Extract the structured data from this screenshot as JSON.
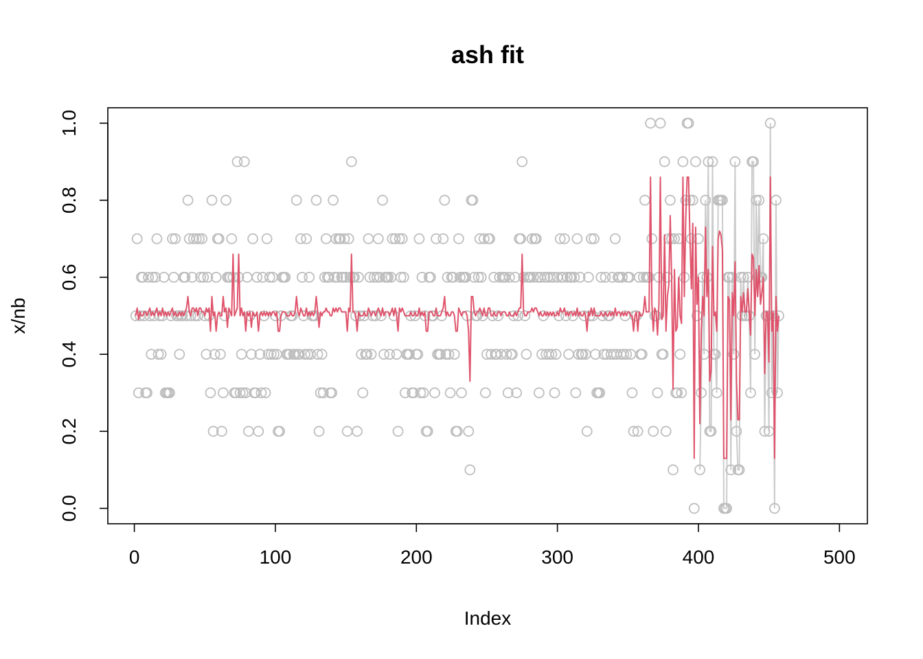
{
  "chart_data": {
    "type": "scatter",
    "title": "ash fit",
    "xlabel": "Index",
    "ylabel": "x/nb",
    "xlim": [
      -18.8,
      519.8
    ],
    "ylim": [
      -0.04,
      1.04
    ],
    "xticks": [
      0,
      100,
      200,
      300,
      400,
      500
    ],
    "yticks": [
      0.0,
      0.2,
      0.4,
      0.6,
      0.8,
      1.0
    ],
    "xtick_labels": [
      "0",
      "100",
      "200",
      "300",
      "400",
      "500"
    ],
    "ytick_labels": [
      "0.0",
      "0.2",
      "0.4",
      "0.6",
      "0.8",
      "1.0"
    ],
    "grid": false,
    "series_colors": {
      "points": "#bebebe",
      "raw_line": "#cccccc",
      "fit_line": "#df536b"
    },
    "point_values": [
      0.5,
      0.7,
      0.3,
      0.5,
      0.6,
      0.6,
      0.5,
      0.3,
      0.3,
      0.6,
      0.5,
      0.4,
      0.6,
      0.5,
      0.6,
      0.7,
      0.4,
      0.5,
      0.4,
      0.5,
      0.6,
      0.3,
      0.3,
      0.3,
      0.3,
      0.5,
      0.7,
      0.6,
      0.7,
      0.5,
      0.5,
      0.4,
      0.5,
      0.5,
      0.6,
      0.6,
      0.5,
      0.8,
      0.7,
      0.5,
      0.6,
      0.7,
      0.5,
      0.7,
      0.5,
      0.7,
      0.6,
      0.7,
      0.6,
      0.5,
      0.4,
      0.6,
      0.5,
      0.3,
      0.8,
      0.2,
      0.4,
      0.6,
      0.7,
      0.7,
      0.4,
      0.2,
      0.3,
      0.5,
      0.8,
      0.6,
      0.6,
      0.6,
      0.7,
      0.6,
      0.3,
      0.3,
      0.9,
      0.6,
      0.3,
      0.4,
      0.3,
      0.9,
      0.3,
      0.6,
      0.2,
      0.5,
      0.4,
      0.7,
      0.3,
      0.3,
      0.6,
      0.2,
      0.4,
      0.3,
      0.6,
      0.5,
      0.3,
      0.7,
      0.4,
      0.6,
      0.4,
      0.6,
      0.4,
      0.5,
      0.4,
      0.2,
      0.2,
      0.5,
      0.6,
      0.6,
      0.6,
      0.4,
      0.4,
      0.4,
      0.5,
      0.5,
      0.4,
      0.4,
      0.8,
      0.4,
      0.4,
      0.7,
      0.6,
      0.5,
      0.4,
      0.7,
      0.4,
      0.6,
      0.4,
      0.5,
      0.5,
      0.5,
      0.8,
      0.4,
      0.2,
      0.3,
      0.4,
      0.3,
      0.6,
      0.7,
      0.6,
      0.6,
      0.3,
      0.3,
      0.8,
      0.6,
      0.7,
      0.6,
      0.7,
      0.7,
      0.6,
      0.6,
      0.7,
      0.6,
      0.2,
      0.7,
      0.6,
      0.9,
      0.6,
      0.6,
      0.5,
      0.2,
      0.6,
      0.5,
      0.4,
      0.3,
      0.5,
      0.4,
      0.4,
      0.7,
      0.6,
      0.4,
      0.5,
      0.6,
      0.5,
      0.6,
      0.7,
      0.6,
      0.5,
      0.8,
      0.4,
      0.6,
      0.6,
      0.6,
      0.4,
      0.6,
      0.7,
      0.5,
      0.7,
      0.4,
      0.2,
      0.7,
      0.6,
      0.7,
      0.6,
      0.3,
      0.4,
      0.4,
      0.4,
      0.5,
      0.3,
      0.3,
      0.5,
      0.4,
      0.4,
      0.7,
      0.3,
      0.6,
      0.3,
      0.5,
      0.2,
      0.2,
      0.6,
      0.6,
      0.5,
      0.5,
      0.3,
      0.7,
      0.4,
      0.4,
      0.4,
      0.5,
      0.7,
      0.8,
      0.4,
      0.6,
      0.4,
      0.3,
      0.6,
      0.6,
      0.4,
      0.2,
      0.2,
      0.7,
      0.6,
      0.3,
      0.6,
      0.6,
      0.6,
      0.5,
      0.2,
      0.1,
      0.8,
      0.8,
      0.6,
      0.5,
      0.5,
      0.6,
      0.7,
      0.6,
      0.5,
      0.7,
      0.3,
      0.4,
      0.7,
      0.7,
      0.4,
      0.5,
      0.6,
      0.4,
      0.4,
      0.5,
      0.6,
      0.4,
      0.6,
      0.6,
      0.6,
      0.4,
      0.3,
      0.6,
      0.4,
      0.4,
      0.5,
      0.6,
      0.3,
      0.5,
      0.7,
      0.7,
      0.9,
      0.6,
      0.5,
      0.4,
      0.6,
      0.6,
      0.6,
      0.7,
      0.6,
      0.7,
      0.7,
      0.6,
      0.3,
      0.6,
      0.4,
      0.5,
      0.6,
      0.4,
      0.6,
      0.4,
      0.6,
      0.4,
      0.6,
      0.3,
      0.4,
      0.6,
      0.5,
      0.7,
      0.6,
      0.6,
      0.7,
      0.5,
      0.6,
      0.4,
      0.6,
      0.6,
      0.5,
      0.6,
      0.3,
      0.7,
      0.4,
      0.6,
      0.4,
      0.4,
      0.5,
      0.4,
      0.2,
      0.6,
      0.5,
      0.7,
      0.5,
      0.7,
      0.4,
      0.3,
      0.3,
      0.3,
      0.6,
      0.5,
      0.4,
      0.6,
      0.4,
      0.5,
      0.5,
      0.4,
      0.6,
      0.4,
      0.7,
      0.4,
      0.6,
      0.6,
      0.4,
      0.6,
      0.4,
      0.5,
      0.4,
      0.6,
      0.6,
      0.4,
      0.3,
      0.2,
      0.5,
      0.5,
      0.2,
      0.6,
      0.4,
      0.4,
      0.6,
      0.8,
      0.6,
      0.6,
      0.6,
      1.0,
      0.7,
      0.2,
      0.5,
      0.5,
      0.3,
      0.6,
      1.0,
      0.4,
      0.4,
      0.9,
      0.2,
      0.6,
      0.7,
      0.8,
      0.7,
      0.1,
      0.7,
      0.3,
      0.3,
      0.7,
      0.4,
      0.3,
      0.9,
      0.6,
      0.8,
      1.0,
      1.0,
      0.8,
      0.7,
      0.8,
      0.0,
      0.9,
      0.5,
      0.7,
      0.1,
      0.3,
      0.6,
      0.4,
      0.8,
      0.6,
      0.9,
      0.2,
      0.2,
      0.9,
      0.4,
      0.4,
      0.3,
      0.8,
      0.8,
      0.8,
      0.8,
      0.0,
      0.0,
      0.0,
      0.6,
      0.6,
      0.1,
      0.6,
      0.4,
      0.9,
      0.2,
      0.1,
      0.1,
      0.6,
      0.5,
      0.6,
      0.5,
      0.5,
      0.6,
      0.5,
      0.3,
      0.9,
      0.9,
      0.4,
      0.8,
      0.6,
      0.8,
      0.6,
      0.6,
      0.7,
      0.2,
      0.5,
      0.5,
      0.2,
      1.0,
      0.3,
      0.5,
      0.0,
      0.8,
      0.3,
      0.5
    ],
    "fit_values": [
      0.5,
      0.52,
      0.49,
      0.51,
      0.5,
      0.5,
      0.51,
      0.51,
      0.5,
      0.51,
      0.52,
      0.5,
      0.51,
      0.5,
      0.51,
      0.52,
      0.5,
      0.51,
      0.5,
      0.52,
      0.5,
      0.51,
      0.5,
      0.51,
      0.5,
      0.51,
      0.52,
      0.5,
      0.51,
      0.5,
      0.5,
      0.51,
      0.5,
      0.51,
      0.5,
      0.51,
      0.52,
      0.55,
      0.51,
      0.5,
      0.52,
      0.52,
      0.51,
      0.52,
      0.5,
      0.52,
      0.52,
      0.51,
      0.51,
      0.5,
      0.52,
      0.51,
      0.52,
      0.46,
      0.55,
      0.5,
      0.51,
      0.46,
      0.5,
      0.51,
      0.5,
      0.5,
      0.55,
      0.51,
      0.52,
      0.47,
      0.52,
      0.51,
      0.5,
      0.66,
      0.5,
      0.51,
      0.52,
      0.66,
      0.5,
      0.52,
      0.5,
      0.51,
      0.46,
      0.51,
      0.5,
      0.51,
      0.47,
      0.51,
      0.5,
      0.5,
      0.51,
      0.46,
      0.5,
      0.51,
      0.5,
      0.51,
      0.5,
      0.51,
      0.5,
      0.51,
      0.5,
      0.51,
      0.51,
      0.5,
      0.51,
      0.46,
      0.46,
      0.5,
      0.51,
      0.51,
      0.51,
      0.5,
      0.5,
      0.5,
      0.51,
      0.5,
      0.5,
      0.51,
      0.55,
      0.51,
      0.5,
      0.52,
      0.51,
      0.5,
      0.5,
      0.52,
      0.5,
      0.51,
      0.5,
      0.51,
      0.5,
      0.51,
      0.55,
      0.51,
      0.47,
      0.51,
      0.5,
      0.51,
      0.51,
      0.52,
      0.51,
      0.51,
      0.5,
      0.5,
      0.52,
      0.51,
      0.52,
      0.51,
      0.52,
      0.52,
      0.51,
      0.51,
      0.51,
      0.51,
      0.46,
      0.52,
      0.51,
      0.66,
      0.51,
      0.51,
      0.5,
      0.46,
      0.51,
      0.5,
      0.5,
      0.5,
      0.51,
      0.5,
      0.5,
      0.52,
      0.51,
      0.5,
      0.51,
      0.51,
      0.5,
      0.51,
      0.52,
      0.51,
      0.5,
      0.52,
      0.5,
      0.51,
      0.51,
      0.51,
      0.5,
      0.51,
      0.52,
      0.5,
      0.52,
      0.5,
      0.46,
      0.52,
      0.51,
      0.52,
      0.51,
      0.5,
      0.5,
      0.5,
      0.5,
      0.51,
      0.5,
      0.5,
      0.51,
      0.5,
      0.5,
      0.52,
      0.5,
      0.51,
      0.5,
      0.51,
      0.46,
      0.46,
      0.51,
      0.51,
      0.51,
      0.5,
      0.5,
      0.52,
      0.5,
      0.5,
      0.5,
      0.51,
      0.52,
      0.55,
      0.5,
      0.51,
      0.5,
      0.5,
      0.51,
      0.51,
      0.5,
      0.46,
      0.46,
      0.52,
      0.51,
      0.5,
      0.51,
      0.51,
      0.51,
      0.5,
      0.46,
      0.33,
      0.55,
      0.55,
      0.51,
      0.5,
      0.51,
      0.51,
      0.52,
      0.51,
      0.5,
      0.52,
      0.5,
      0.5,
      0.52,
      0.52,
      0.5,
      0.5,
      0.51,
      0.5,
      0.5,
      0.51,
      0.51,
      0.5,
      0.51,
      0.51,
      0.51,
      0.5,
      0.5,
      0.51,
      0.5,
      0.5,
      0.5,
      0.51,
      0.5,
      0.51,
      0.52,
      0.52,
      0.66,
      0.51,
      0.5,
      0.5,
      0.51,
      0.51,
      0.51,
      0.52,
      0.51,
      0.52,
      0.52,
      0.51,
      0.5,
      0.51,
      0.5,
      0.5,
      0.51,
      0.5,
      0.51,
      0.5,
      0.51,
      0.5,
      0.51,
      0.5,
      0.5,
      0.51,
      0.5,
      0.52,
      0.51,
      0.51,
      0.52,
      0.5,
      0.51,
      0.5,
      0.51,
      0.51,
      0.5,
      0.51,
      0.5,
      0.52,
      0.5,
      0.51,
      0.5,
      0.5,
      0.51,
      0.5,
      0.46,
      0.51,
      0.5,
      0.52,
      0.5,
      0.52,
      0.5,
      0.5,
      0.5,
      0.5,
      0.51,
      0.5,
      0.5,
      0.51,
      0.5,
      0.5,
      0.51,
      0.5,
      0.51,
      0.5,
      0.52,
      0.5,
      0.51,
      0.51,
      0.5,
      0.51,
      0.5,
      0.51,
      0.5,
      0.51,
      0.51,
      0.5,
      0.5,
      0.46,
      0.5,
      0.51,
      0.46,
      0.51,
      0.5,
      0.5,
      0.51,
      0.55,
      0.51,
      0.51,
      0.51,
      0.86,
      0.53,
      0.46,
      0.52,
      0.51,
      0.45,
      0.53,
      0.86,
      0.49,
      0.5,
      0.71,
      0.46,
      0.55,
      0.58,
      0.76,
      0.6,
      0.31,
      0.62,
      0.46,
      0.47,
      0.6,
      0.5,
      0.48,
      0.86,
      0.55,
      0.75,
      0.86,
      0.86,
      0.7,
      0.57,
      0.74,
      0.13,
      0.73,
      0.53,
      0.6,
      0.22,
      0.46,
      0.55,
      0.5,
      0.73,
      0.55,
      0.62,
      0.33,
      0.36,
      0.68,
      0.5,
      0.51,
      0.46,
      0.7,
      0.72,
      0.71,
      0.67,
      0.13,
      0.13,
      0.13,
      0.55,
      0.54,
      0.23,
      0.56,
      0.5,
      0.64,
      0.33,
      0.23,
      0.23,
      0.55,
      0.51,
      0.56,
      0.51,
      0.51,
      0.57,
      0.51,
      0.45,
      0.66,
      0.65,
      0.5,
      0.62,
      0.55,
      0.63,
      0.53,
      0.56,
      0.6,
      0.35,
      0.51,
      0.51,
      0.38,
      0.86,
      0.46,
      0.51,
      0.13,
      0.55,
      0.46,
      0.5
    ]
  }
}
